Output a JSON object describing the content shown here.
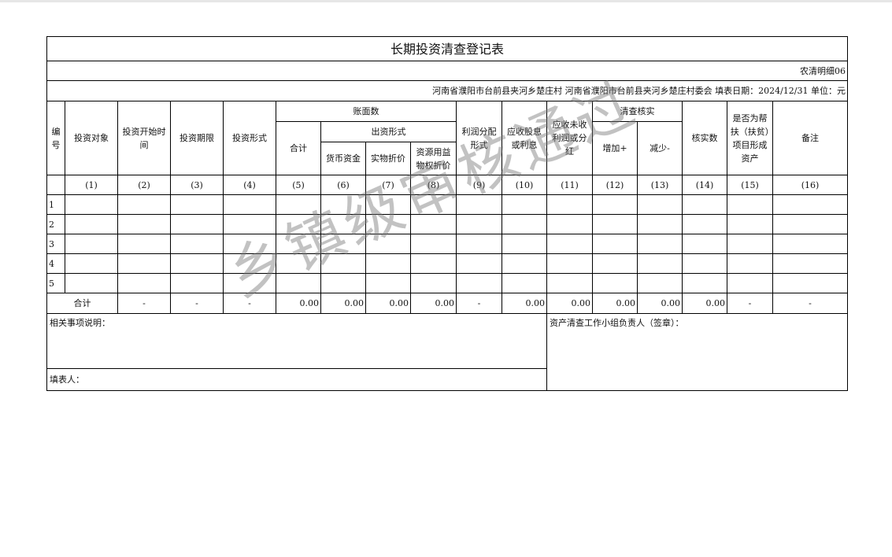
{
  "title": "长期投资清查登记表",
  "form_code": "农清明细06",
  "info": "河南省濮阳市台前县夹河乡楚庄村  河南省濮阳市台前县夹河乡楚庄村委会  填表日期：2024/12/31   单位：元",
  "headers": {
    "no": "编号",
    "target": "投资对象",
    "start": "投资开始时间",
    "term": "投资期限",
    "form": "投资形式",
    "book": "账面数",
    "total": "合计",
    "contrib": "出资形式",
    "cash": "货币资金",
    "kind": "实物折价",
    "rights": "资源用益物权折价",
    "profit": "利润分配形式",
    "div": "应收股息或利息",
    "unpaid": "应收未收利润或分红",
    "check": "清查核实",
    "inc": "增加+",
    "dec": "减少-",
    "verified": "核实数",
    "aid": "是否为帮扶（扶贫）项目形成资产",
    "remark": "备注"
  },
  "index": [
    "(1)",
    "(2)",
    "(3)",
    "(4)",
    "(5)",
    "(6)",
    "(7)",
    "(8)",
    "(9)",
    "(10)",
    "(11)",
    "(12)",
    "(13)",
    "(14)",
    "(15)",
    "(16)"
  ],
  "rows": [
    "1",
    "2",
    "3",
    "4",
    "5"
  ],
  "totals": {
    "label": "合计",
    "values": [
      "-",
      "-",
      "-",
      "0.00",
      "0.00",
      "0.00",
      "0.00",
      "-",
      "0.00",
      "0.00",
      "0.00",
      "0.00",
      "0.00",
      "-",
      "-"
    ]
  },
  "notes_label": "相关事项说明：",
  "leader_label": "资产清查工作小组负责人（签章）：",
  "filler_label": "填表人：",
  "watermark": "乡镇级审核通过"
}
